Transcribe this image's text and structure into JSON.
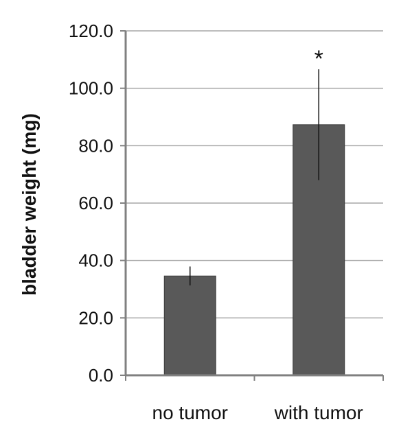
{
  "chart_data": {
    "type": "bar",
    "title": "",
    "xlabel": "",
    "ylabel": "bladder weight (mg)",
    "categories": [
      "no tumor",
      "with tumor"
    ],
    "values": [
      34.6,
      87.3
    ],
    "errors": [
      3.3,
      19.3
    ],
    "annotations": [
      "",
      "*"
    ],
    "ylim": [
      0,
      120
    ],
    "yticks": [
      0,
      20,
      40,
      60,
      80,
      100,
      120
    ],
    "ytick_labels": [
      "0.0",
      "20.0",
      "40.0",
      "60.0",
      "80.0",
      "100.0",
      "120.0"
    ],
    "grid": true,
    "legend": "none",
    "colors": {
      "bar": "#595959",
      "bar_edge": "#3a3a3a",
      "axis": "#808080",
      "grid": "#a6a6a6",
      "error": "#111111"
    }
  }
}
